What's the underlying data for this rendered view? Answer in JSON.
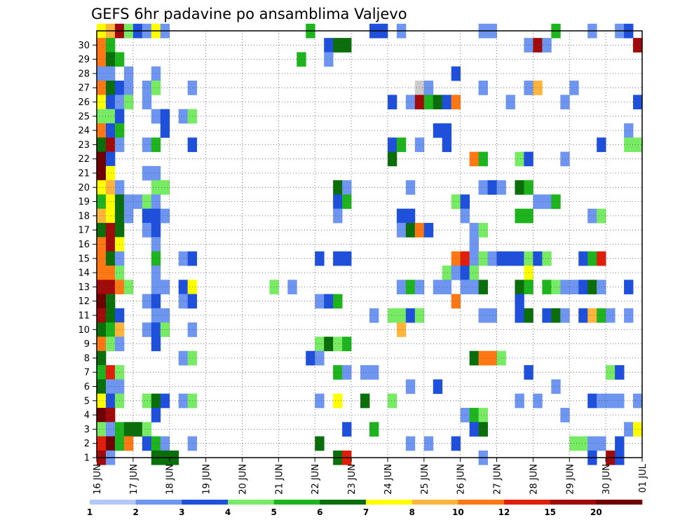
{
  "chart_data": {
    "type": "heatmap",
    "title": "GEFS 6hr padavine po ansamblima Valjevo",
    "x_ticks": [
      "16 JUN",
      "17 JUN",
      "18 JUN",
      "19 JUN",
      "20 JUN",
      "21 JUN",
      "22 JUN",
      "23 JUN",
      "24 JUN",
      "25 JUN",
      "26 JUN",
      "27 JUN",
      "28 JUN",
      "29 JUN",
      "30 JUN",
      "01 JUL"
    ],
    "y_ticks": [
      "1",
      "2",
      "3",
      "4",
      "5",
      "6",
      "7",
      "8",
      "9",
      "10",
      "11",
      "12",
      "13",
      "14",
      "15",
      "16",
      "17",
      "18",
      "19",
      "20",
      "21",
      "22",
      "23",
      "24",
      "25",
      "26",
      "27",
      "28",
      "29",
      "30"
    ],
    "xlim_steps": [
      0,
      60
    ],
    "ylim_members": [
      0,
      30
    ],
    "grid": true,
    "colorbar": {
      "labels": [
        "1",
        "2",
        "3",
        "4",
        "5",
        "6",
        "7",
        "8",
        "10",
        "12",
        "15",
        "20"
      ],
      "colors": [
        "#b4c8f5",
        "#6e96f0",
        "#1e50dc",
        "#78eb64",
        "#1eb41e",
        "#0a6e0a",
        "#ffff00",
        "#ffb43c",
        "#ff7814",
        "#e11e0a",
        "#a00a0a",
        "#6e0000"
      ]
    },
    "cells": [
      [
        0,
        30,
        6
      ],
      [
        1,
        30,
        7
      ],
      [
        2,
        30,
        10
      ],
      [
        3,
        30,
        3
      ],
      [
        4,
        30,
        2
      ],
      [
        5,
        30,
        1
      ],
      [
        6,
        30,
        6
      ],
      [
        7,
        30,
        1
      ],
      [
        23,
        30,
        4
      ],
      [
        30,
        30,
        2
      ],
      [
        31,
        30,
        2
      ],
      [
        33,
        30,
        1
      ],
      [
        42,
        30,
        1
      ],
      [
        43,
        30,
        1
      ],
      [
        50,
        30,
        4
      ],
      [
        54,
        30,
        1
      ],
      [
        57,
        30,
        1
      ],
      [
        58,
        30,
        2
      ],
      [
        0,
        29,
        8
      ],
      [
        1,
        29,
        4
      ],
      [
        25,
        29,
        2
      ],
      [
        26,
        29,
        5
      ],
      [
        27,
        29,
        5
      ],
      [
        47,
        29,
        1
      ],
      [
        48,
        29,
        10
      ],
      [
        49,
        29,
        1
      ],
      [
        59,
        29,
        10
      ],
      [
        0,
        28,
        8
      ],
      [
        1,
        28,
        5
      ],
      [
        2,
        28,
        4
      ],
      [
        22,
        28,
        4
      ],
      [
        25,
        28,
        1
      ],
      [
        0,
        27,
        1
      ],
      [
        1,
        27,
        1
      ],
      [
        3,
        27,
        1
      ],
      [
        6,
        27,
        1
      ],
      [
        39,
        27,
        2
      ],
      [
        0,
        26,
        8
      ],
      [
        1,
        26,
        5
      ],
      [
        2,
        26,
        2
      ],
      [
        3,
        26,
        1
      ],
      [
        5,
        26,
        1
      ],
      [
        6,
        26,
        3
      ],
      [
        10,
        26,
        1
      ],
      [
        35,
        26,
        12
      ],
      [
        36,
        26,
        1
      ],
      [
        42,
        26,
        1
      ],
      [
        47,
        26,
        1
      ],
      [
        48,
        26,
        7
      ],
      [
        52,
        26,
        1
      ],
      [
        0,
        25,
        6
      ],
      [
        1,
        25,
        2
      ],
      [
        2,
        25,
        1
      ],
      [
        3,
        25,
        3
      ],
      [
        5,
        25,
        1
      ],
      [
        32,
        25,
        2
      ],
      [
        34,
        25,
        1
      ],
      [
        35,
        25,
        10
      ],
      [
        36,
        25,
        4
      ],
      [
        37,
        25,
        5
      ],
      [
        38,
        25,
        2
      ],
      [
        39,
        25,
        8
      ],
      [
        45,
        25,
        1
      ],
      [
        51,
        25,
        1
      ],
      [
        59,
        25,
        2
      ],
      [
        0,
        24,
        3
      ],
      [
        1,
        24,
        3
      ],
      [
        2,
        24,
        2
      ],
      [
        6,
        24,
        1
      ],
      [
        7,
        24,
        2
      ],
      [
        9,
        24,
        1
      ],
      [
        10,
        24,
        3
      ],
      [
        0,
        23,
        8
      ],
      [
        1,
        23,
        2
      ],
      [
        2,
        23,
        4
      ],
      [
        7,
        23,
        2
      ],
      [
        37,
        23,
        2
      ],
      [
        38,
        23,
        2
      ],
      [
        58,
        23,
        1
      ],
      [
        0,
        22,
        5
      ],
      [
        1,
        22,
        10
      ],
      [
        2,
        22,
        1
      ],
      [
        5,
        22,
        1
      ],
      [
        6,
        22,
        4
      ],
      [
        10,
        22,
        2
      ],
      [
        32,
        22,
        2
      ],
      [
        33,
        22,
        4
      ],
      [
        35,
        22,
        1
      ],
      [
        38,
        22,
        2
      ],
      [
        55,
        22,
        2
      ],
      [
        58,
        22,
        3
      ],
      [
        59,
        22,
        3
      ],
      [
        0,
        21,
        11
      ],
      [
        1,
        21,
        2
      ],
      [
        32,
        21,
        5
      ],
      [
        41,
        21,
        8
      ],
      [
        42,
        21,
        4
      ],
      [
        46,
        21,
        3
      ],
      [
        47,
        21,
        2
      ],
      [
        51,
        21,
        1
      ],
      [
        0,
        20,
        11
      ],
      [
        1,
        20,
        6
      ],
      [
        5,
        20,
        1
      ],
      [
        6,
        20,
        1
      ],
      [
        0,
        19,
        6
      ],
      [
        1,
        19,
        7
      ],
      [
        2,
        19,
        1
      ],
      [
        6,
        19,
        3
      ],
      [
        7,
        19,
        3
      ],
      [
        26,
        19,
        5
      ],
      [
        27,
        19,
        1
      ],
      [
        34,
        19,
        1
      ],
      [
        42,
        19,
        1
      ],
      [
        43,
        19,
        2
      ],
      [
        44,
        19,
        1
      ],
      [
        46,
        19,
        5
      ],
      [
        47,
        19,
        4
      ],
      [
        0,
        18,
        4
      ],
      [
        1,
        18,
        6
      ],
      [
        2,
        18,
        5
      ],
      [
        3,
        18,
        1
      ],
      [
        4,
        18,
        1
      ],
      [
        5,
        18,
        3
      ],
      [
        6,
        18,
        1
      ],
      [
        26,
        18,
        2
      ],
      [
        27,
        18,
        4
      ],
      [
        39,
        18,
        3
      ],
      [
        40,
        18,
        2
      ],
      [
        48,
        18,
        1
      ],
      [
        49,
        18,
        1
      ],
      [
        50,
        18,
        4
      ],
      [
        0,
        17,
        7
      ],
      [
        1,
        17,
        6
      ],
      [
        2,
        17,
        5
      ],
      [
        3,
        17,
        1
      ],
      [
        5,
        17,
        2
      ],
      [
        6,
        17,
        2
      ],
      [
        7,
        17,
        1
      ],
      [
        26,
        17,
        1
      ],
      [
        33,
        17,
        2
      ],
      [
        34,
        17,
        2
      ],
      [
        40,
        17,
        1
      ],
      [
        46,
        17,
        4
      ],
      [
        47,
        17,
        4
      ],
      [
        54,
        17,
        1
      ],
      [
        55,
        17,
        3
      ],
      [
        0,
        16,
        5
      ],
      [
        1,
        16,
        10
      ],
      [
        2,
        16,
        5
      ],
      [
        5,
        16,
        1
      ],
      [
        6,
        16,
        2
      ],
      [
        33,
        16,
        1
      ],
      [
        34,
        16,
        5
      ],
      [
        35,
        16,
        8
      ],
      [
        36,
        16,
        2
      ],
      [
        41,
        16,
        1
      ],
      [
        42,
        16,
        3
      ],
      [
        0,
        15,
        8
      ],
      [
        1,
        15,
        10
      ],
      [
        2,
        15,
        6
      ],
      [
        6,
        15,
        1
      ],
      [
        41,
        15,
        1
      ],
      [
        0,
        14,
        8
      ],
      [
        1,
        14,
        5
      ],
      [
        2,
        14,
        1
      ],
      [
        6,
        14,
        4
      ],
      [
        9,
        14,
        1
      ],
      [
        10,
        14,
        2
      ],
      [
        24,
        14,
        2
      ],
      [
        26,
        14,
        2
      ],
      [
        27,
        14,
        2
      ],
      [
        39,
        14,
        8
      ],
      [
        40,
        14,
        9
      ],
      [
        41,
        14,
        1
      ],
      [
        42,
        14,
        3
      ],
      [
        43,
        14,
        1
      ],
      [
        44,
        14,
        2
      ],
      [
        45,
        14,
        2
      ],
      [
        46,
        14,
        2
      ],
      [
        47,
        14,
        3
      ],
      [
        48,
        14,
        2
      ],
      [
        49,
        14,
        3
      ],
      [
        53,
        14,
        2
      ],
      [
        54,
        14,
        4
      ],
      [
        55,
        14,
        9
      ],
      [
        0,
        13,
        8
      ],
      [
        1,
        13,
        8
      ],
      [
        2,
        13,
        3
      ],
      [
        6,
        13,
        1
      ],
      [
        38,
        13,
        3
      ],
      [
        39,
        13,
        1
      ],
      [
        40,
        13,
        2
      ],
      [
        41,
        13,
        3
      ],
      [
        47,
        13,
        6
      ],
      [
        0,
        12,
        10
      ],
      [
        1,
        12,
        10
      ],
      [
        2,
        12,
        8
      ],
      [
        3,
        12,
        3
      ],
      [
        6,
        12,
        1
      ],
      [
        7,
        12,
        1
      ],
      [
        9,
        12,
        2
      ],
      [
        10,
        12,
        6
      ],
      [
        19,
        12,
        3
      ],
      [
        21,
        12,
        1
      ],
      [
        33,
        12,
        1
      ],
      [
        34,
        12,
        4
      ],
      [
        35,
        12,
        1
      ],
      [
        37,
        12,
        1
      ],
      [
        38,
        12,
        1
      ],
      [
        40,
        12,
        1
      ],
      [
        41,
        12,
        1
      ],
      [
        42,
        12,
        5
      ],
      [
        46,
        12,
        5
      ],
      [
        47,
        12,
        4
      ],
      [
        49,
        12,
        4
      ],
      [
        50,
        12,
        3
      ],
      [
        51,
        12,
        1
      ],
      [
        52,
        12,
        1
      ],
      [
        53,
        12,
        2
      ],
      [
        54,
        12,
        5
      ],
      [
        55,
        12,
        1
      ],
      [
        58,
        12,
        2
      ],
      [
        0,
        11,
        11
      ],
      [
        1,
        11,
        5
      ],
      [
        5,
        11,
        1
      ],
      [
        6,
        11,
        2
      ],
      [
        9,
        11,
        1
      ],
      [
        10,
        11,
        2
      ],
      [
        24,
        11,
        1
      ],
      [
        25,
        11,
        2
      ],
      [
        26,
        11,
        4
      ],
      [
        39,
        11,
        8
      ],
      [
        46,
        11,
        2
      ],
      [
        0,
        10,
        10
      ],
      [
        1,
        10,
        5
      ],
      [
        2,
        10,
        2
      ],
      [
        6,
        10,
        1
      ],
      [
        7,
        10,
        1
      ],
      [
        30,
        10,
        1
      ],
      [
        32,
        10,
        3
      ],
      [
        33,
        10,
        3
      ],
      [
        34,
        10,
        2
      ],
      [
        35,
        10,
        3
      ],
      [
        42,
        10,
        1
      ],
      [
        43,
        10,
        1
      ],
      [
        46,
        10,
        2
      ],
      [
        47,
        10,
        5
      ],
      [
        49,
        10,
        2
      ],
      [
        50,
        10,
        5
      ],
      [
        51,
        10,
        1
      ],
      [
        53,
        10,
        2
      ],
      [
        54,
        10,
        7
      ],
      [
        55,
        10,
        4
      ],
      [
        56,
        10,
        1
      ],
      [
        58,
        10,
        1
      ],
      [
        0,
        9,
        5
      ],
      [
        1,
        9,
        4
      ],
      [
        2,
        9,
        7
      ],
      [
        5,
        9,
        1
      ],
      [
        6,
        9,
        2
      ],
      [
        7,
        9,
        3
      ],
      [
        10,
        9,
        1
      ],
      [
        33,
        9,
        7
      ],
      [
        0,
        8,
        8
      ],
      [
        1,
        8,
        3
      ],
      [
        2,
        8,
        1
      ],
      [
        6,
        8,
        2
      ],
      [
        24,
        8,
        3
      ],
      [
        25,
        8,
        5
      ],
      [
        26,
        8,
        3
      ],
      [
        27,
        8,
        4
      ],
      [
        0,
        7,
        5
      ],
      [
        9,
        7,
        1
      ],
      [
        10,
        7,
        3
      ],
      [
        23,
        7,
        2
      ],
      [
        24,
        7,
        1
      ],
      [
        41,
        7,
        5
      ],
      [
        42,
        7,
        8
      ],
      [
        43,
        7,
        8
      ],
      [
        44,
        7,
        3
      ],
      [
        0,
        6,
        4
      ],
      [
        1,
        6,
        9
      ],
      [
        2,
        6,
        3
      ],
      [
        26,
        6,
        4
      ],
      [
        27,
        6,
        1
      ],
      [
        29,
        6,
        1
      ],
      [
        30,
        6,
        1
      ],
      [
        47,
        6,
        2
      ],
      [
        56,
        6,
        3
      ],
      [
        57,
        6,
        2
      ],
      [
        0,
        5,
        5
      ],
      [
        1,
        5,
        1
      ],
      [
        2,
        5,
        1
      ],
      [
        34,
        5,
        1
      ],
      [
        37,
        5,
        2
      ],
      [
        50,
        5,
        1
      ],
      [
        0,
        4,
        6
      ],
      [
        1,
        4,
        2
      ],
      [
        2,
        4,
        3
      ],
      [
        5,
        4,
        3
      ],
      [
        6,
        4,
        5
      ],
      [
        7,
        4,
        2
      ],
      [
        9,
        4,
        1
      ],
      [
        10,
        4,
        3
      ],
      [
        24,
        4,
        1
      ],
      [
        26,
        4,
        6
      ],
      [
        29,
        4,
        5
      ],
      [
        32,
        4,
        3
      ],
      [
        46,
        4,
        1
      ],
      [
        48,
        4,
        1
      ],
      [
        54,
        4,
        2
      ],
      [
        55,
        4,
        1
      ],
      [
        56,
        4,
        1
      ],
      [
        57,
        4,
        1
      ],
      [
        59,
        4,
        1
      ],
      [
        0,
        3,
        11
      ],
      [
        1,
        3,
        10
      ],
      [
        6,
        3,
        2
      ],
      [
        40,
        3,
        1
      ],
      [
        41,
        3,
        4
      ],
      [
        42,
        3,
        3
      ],
      [
        51,
        3,
        1
      ],
      [
        0,
        2,
        3
      ],
      [
        1,
        2,
        1
      ],
      [
        2,
        2,
        4
      ],
      [
        3,
        2,
        5
      ],
      [
        4,
        2,
        5
      ],
      [
        5,
        2,
        3
      ],
      [
        27,
        2,
        2
      ],
      [
        30,
        2,
        4
      ],
      [
        41,
        2,
        2
      ],
      [
        42,
        2,
        5
      ],
      [
        58,
        2,
        1
      ],
      [
        59,
        2,
        6
      ],
      [
        0,
        1,
        9
      ],
      [
        1,
        1,
        11
      ],
      [
        2,
        1,
        4
      ],
      [
        3,
        1,
        8
      ],
      [
        5,
        1,
        2
      ],
      [
        6,
        1,
        4
      ],
      [
        7,
        1,
        1
      ],
      [
        10,
        1,
        1
      ],
      [
        24,
        1,
        5
      ],
      [
        34,
        1,
        1
      ],
      [
        36,
        1,
        1
      ],
      [
        39,
        1,
        2
      ],
      [
        52,
        1,
        3
      ],
      [
        53,
        1,
        3
      ],
      [
        54,
        1,
        1
      ],
      [
        55,
        1,
        1
      ],
      [
        57,
        1,
        2
      ],
      [
        0,
        0,
        10
      ],
      [
        1,
        0,
        1
      ],
      [
        6,
        0,
        5
      ],
      [
        7,
        0,
        5
      ],
      [
        8,
        0,
        5
      ],
      [
        26,
        0,
        5
      ],
      [
        27,
        0,
        9
      ],
      [
        42,
        0,
        1
      ],
      [
        54,
        0,
        2
      ],
      [
        56,
        0,
        10
      ],
      [
        57,
        0,
        2
      ]
    ]
  }
}
